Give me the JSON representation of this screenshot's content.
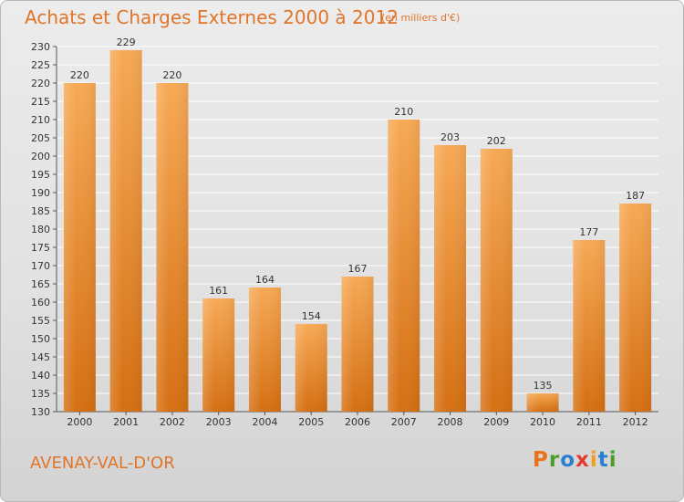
{
  "header": {
    "title": "Achats et Charges Externes 2000 à 2012",
    "subtitle": "(en milliers d'€)"
  },
  "footer": {
    "commune": "AVENAY-VAL-D'OR",
    "logo_text": "Proxiti",
    "logo_colors": [
      "#e8731c",
      "#4a9e2f",
      "#2a7fd0",
      "#e23b2e",
      "#f0a020",
      "#2a7fd0",
      "#4a9e2f"
    ]
  },
  "colors": {
    "bar_light": "#f7a955",
    "bar_dark": "#d56f12",
    "title": "#e0752a"
  },
  "chart_data": {
    "type": "bar",
    "title": "Achats et Charges Externes 2000 à 2012",
    "subtitle": "(en milliers d'€)",
    "xlabel": "",
    "ylabel": "",
    "categories": [
      "2000",
      "2001",
      "2002",
      "2003",
      "2004",
      "2005",
      "2006",
      "2007",
      "2008",
      "2009",
      "2010",
      "2011",
      "2012"
    ],
    "values": [
      220,
      229,
      220,
      161,
      164,
      154,
      167,
      210,
      203,
      202,
      135,
      177,
      187
    ],
    "ylim": [
      130,
      230
    ],
    "yticks": [
      130,
      135,
      140,
      145,
      150,
      155,
      160,
      165,
      170,
      175,
      180,
      185,
      190,
      195,
      200,
      205,
      210,
      215,
      220,
      225,
      230
    ],
    "grid": true,
    "legend": "none"
  }
}
